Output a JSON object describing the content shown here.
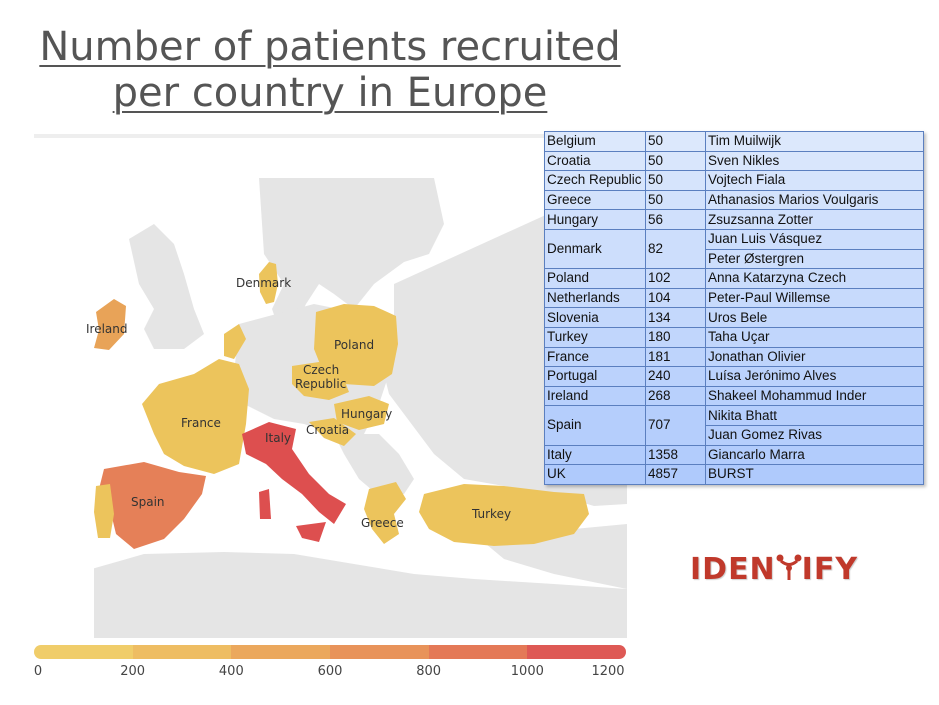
{
  "title": {
    "line1": "Number of patients recruited",
    "line2": "per country in Europe"
  },
  "map": {
    "countries": [
      {
        "name": "Ireland",
        "label": "Ireland",
        "value": 268
      },
      {
        "name": "Denmark",
        "label": "Denmark",
        "value": 82
      },
      {
        "name": "Poland",
        "label": "Poland",
        "value": 102
      },
      {
        "name": "Czech Republic",
        "label_line1": "Czech",
        "label_line2": "Republic",
        "value": 50
      },
      {
        "name": "France",
        "label": "France",
        "value": 181
      },
      {
        "name": "Hungary",
        "label": "Hungary",
        "value": 56
      },
      {
        "name": "Croatia",
        "label": "Croatia",
        "value": 50
      },
      {
        "name": "Italy",
        "label": "Italy",
        "value": 1358
      },
      {
        "name": "Spain",
        "label": "Spain",
        "value": 707
      },
      {
        "name": "Greece",
        "label": "Greece",
        "value": 50
      },
      {
        "name": "Turkey",
        "label": "Turkey",
        "value": 180
      }
    ],
    "colors": {
      "land": "#e5e5e5",
      "sea": "#ffffff",
      "low": "#ecc45c",
      "mid": "#e8a358",
      "high": "#e58058",
      "max": "#dd4f4f"
    }
  },
  "legend": {
    "colors": [
      "#f0cd6a",
      "#eebd63",
      "#eba85d",
      "#e8935a",
      "#e47957",
      "#de5955"
    ],
    "ticks": [
      "0",
      "200",
      "400",
      "600",
      "800",
      "1000",
      "1200"
    ]
  },
  "table": {
    "rows": [
      {
        "country": "Belgium",
        "count": "50",
        "names": [
          "Tim Muilwijk"
        ]
      },
      {
        "country": "Croatia",
        "count": "50",
        "names": [
          "Sven Nikles"
        ]
      },
      {
        "country": "Czech Republic",
        "count": "50",
        "names": [
          "Vojtech Fiala"
        ]
      },
      {
        "country": "Greece",
        "count": "50",
        "names": [
          "Athanasios Marios Voulgaris"
        ]
      },
      {
        "country": "Hungary",
        "count": "56",
        "names": [
          "Zsuzsanna Zotter"
        ]
      },
      {
        "country": "Denmark",
        "count": "82",
        "names": [
          "Juan Luis Vásquez",
          "Peter Østergren"
        ]
      },
      {
        "country": "Poland",
        "count": "102",
        "names": [
          "Anna Katarzyna Czech"
        ]
      },
      {
        "country": "Netherlands",
        "count": "104",
        "names": [
          "Peter-Paul Willemse"
        ]
      },
      {
        "country": "Slovenia",
        "count": "134",
        "names": [
          "Uros Bele"
        ]
      },
      {
        "country": "Turkey",
        "count": "180",
        "names": [
          "Taha Uçar"
        ]
      },
      {
        "country": "France",
        "count": "181",
        "names": [
          "Jonathan Olivier"
        ]
      },
      {
        "country": "Portugal",
        "count": "240",
        "names": [
          "Luísa Jerónimo Alves"
        ]
      },
      {
        "country": "Ireland",
        "count": "268",
        "names": [
          "Shakeel Mohammud Inder"
        ]
      },
      {
        "country": "Spain",
        "count": "707",
        "names": [
          "Nikita Bhatt",
          "Juan Gomez Rivas"
        ]
      },
      {
        "country": "Italy",
        "count": "1358",
        "names": [
          "Giancarlo Marra"
        ]
      },
      {
        "country": "UK",
        "count": "4857",
        "names": [
          "BURST"
        ]
      }
    ]
  },
  "logo": {
    "text_left": "IDEN",
    "text_right": "IFY",
    "icon": "robot-t-icon"
  }
}
